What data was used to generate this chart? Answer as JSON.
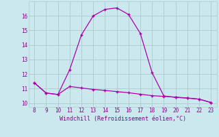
{
  "x_top": [
    8,
    9,
    10,
    11,
    12,
    13,
    14,
    15,
    16,
    17,
    18,
    19,
    20,
    21,
    22,
    23
  ],
  "y_top": [
    11.4,
    10.7,
    10.6,
    12.3,
    14.7,
    16.0,
    16.45,
    16.55,
    16.1,
    14.8,
    12.1,
    10.5,
    10.4,
    10.35,
    10.28,
    10.05
  ],
  "x_bot": [
    8,
    9,
    10,
    11,
    12,
    13,
    14,
    15,
    16,
    17,
    18,
    19,
    20,
    21,
    22,
    23
  ],
  "y_bot": [
    11.4,
    10.7,
    10.6,
    11.15,
    11.05,
    10.95,
    10.88,
    10.8,
    10.72,
    10.62,
    10.52,
    10.47,
    10.42,
    10.36,
    10.28,
    10.05
  ],
  "line_color": "#aa00aa",
  "bg_color": "#cce8ef",
  "grid_color": "#aacccc",
  "xlabel": "Windchill (Refroidissement éolien,°C)",
  "ylim": [
    9.75,
    17.0
  ],
  "xlim": [
    7.5,
    23.5
  ],
  "yticks": [
    10,
    11,
    12,
    13,
    14,
    15,
    16
  ],
  "xticks": [
    8,
    9,
    10,
    11,
    12,
    13,
    14,
    15,
    16,
    17,
    18,
    19,
    20,
    21,
    22,
    23
  ],
  "font_color": "#880088"
}
